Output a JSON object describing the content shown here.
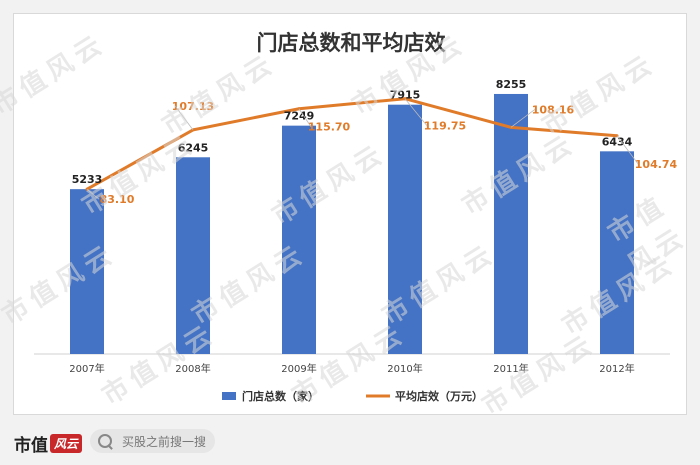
{
  "brand": {
    "name": "市值",
    "badge": "风云"
  },
  "search": {
    "placeholder": "买股之前搜一搜"
  },
  "watermark_text": "市值风云",
  "chart_data": {
    "type": "bar",
    "title": "门店总数和平均店效",
    "categories": [
      "2007年",
      "2008年",
      "2009年",
      "2010年",
      "2011年",
      "2012年"
    ],
    "series": [
      {
        "name": "门店总数（家）",
        "type": "bar",
        "color": "#4472c4",
        "values": [
          5233,
          6245,
          7249,
          7915,
          8255,
          6434
        ],
        "labels": [
          "5233",
          "6245",
          "7249",
          "7915",
          "8255",
          "6434"
        ]
      },
      {
        "name": "平均店效（万元）",
        "type": "line",
        "color": "#e07b2a",
        "values": [
          83.1,
          107.13,
          115.7,
          119.75,
          108.16,
          104.74
        ],
        "labels": [
          "83.10",
          "107.13",
          "115.70",
          "119.75",
          "108.16",
          "104.74"
        ]
      }
    ],
    "grid": true,
    "legend": "bottom"
  }
}
